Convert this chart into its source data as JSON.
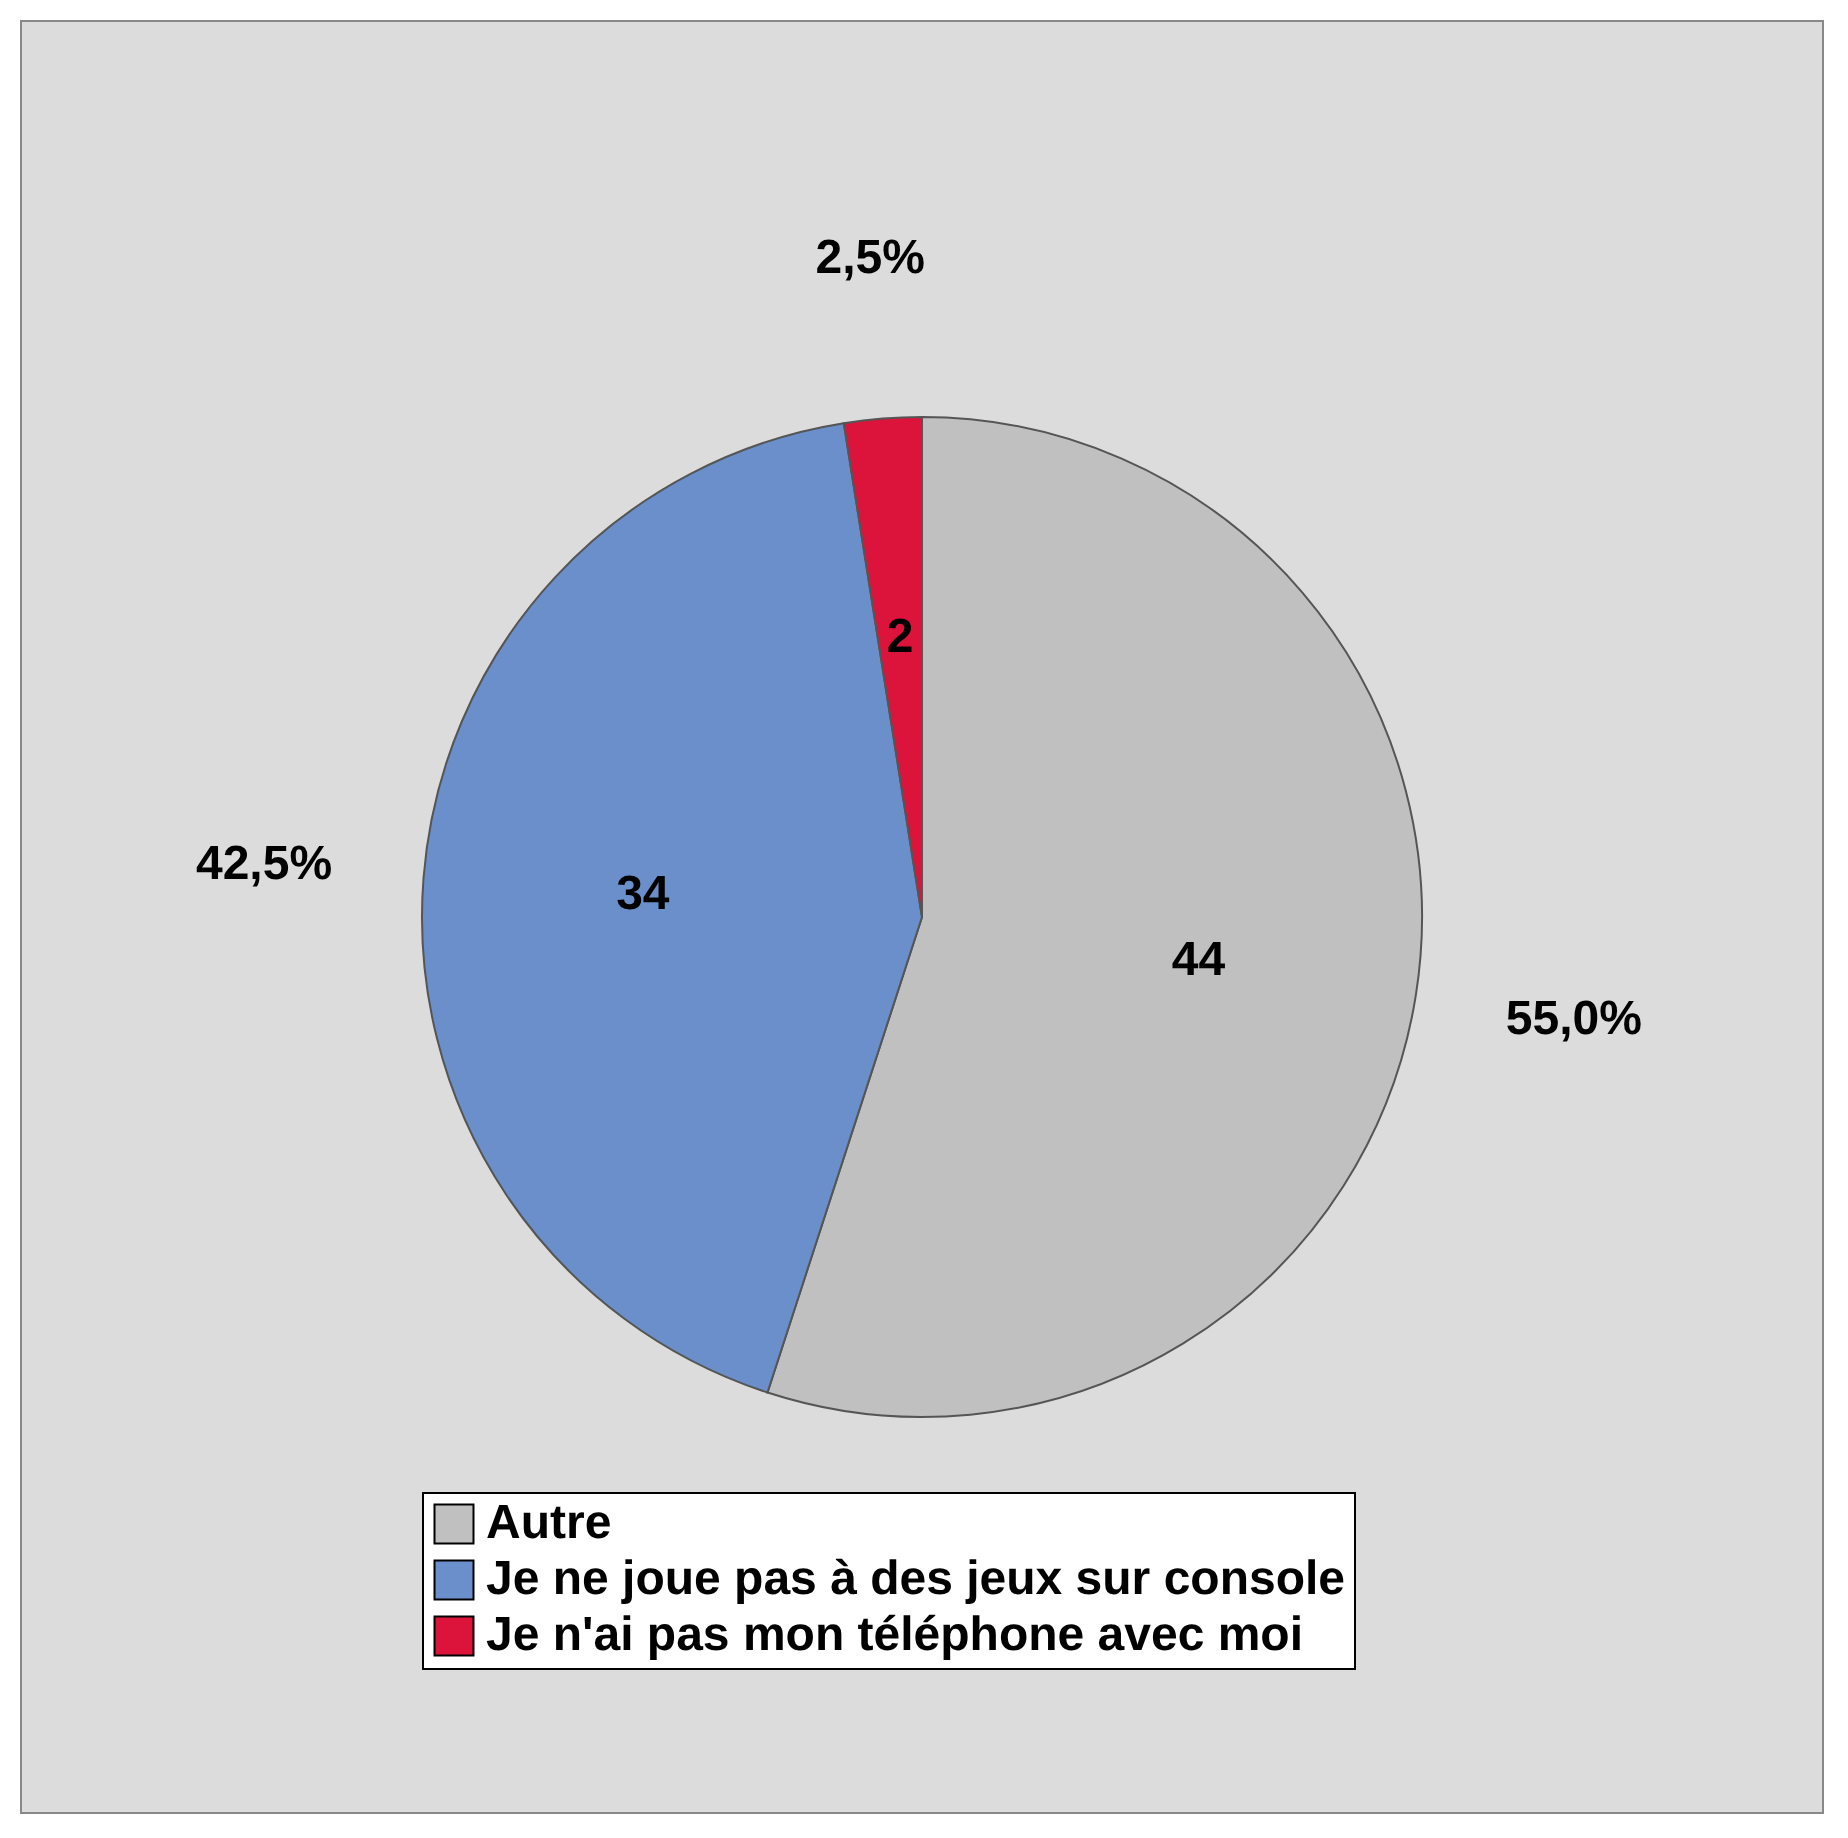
{
  "chart_data": {
    "type": "pie",
    "categories": [
      "Autre",
      "Je ne joue pas à des jeux sur console",
      "Je n'ai pas mon téléphone avec moi"
    ],
    "values": [
      55,
      42.5,
      2.5
    ],
    "colors": [
      "#c0c0c0",
      "#6b8fcb",
      "#dc143c"
    ],
    "value_labels": [
      "55,0%",
      "42,5%",
      "2,5%"
    ],
    "annotations": [
      "44",
      "34",
      "2"
    ],
    "legend": "bottom"
  }
}
